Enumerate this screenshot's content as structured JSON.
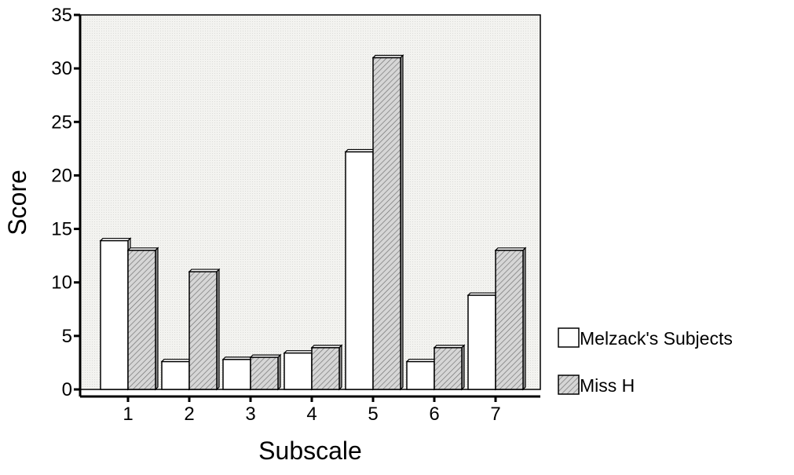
{
  "chart_data": {
    "type": "bar",
    "title": "",
    "xlabel": "Subscale",
    "ylabel": "Score",
    "categories": [
      "1",
      "2",
      "3",
      "4",
      "5",
      "6",
      "7"
    ],
    "ylim": [
      0,
      35
    ],
    "yticks": [
      "0",
      "5",
      "10",
      "15",
      "20",
      "25",
      "30",
      "35"
    ],
    "grid": false,
    "legend_position": "right",
    "series": [
      {
        "name": "Melzack's Subjects",
        "values": [
          13.9,
          2.6,
          2.8,
          3.4,
          22.2,
          2.6,
          8.8
        ],
        "fill": "#ffffff",
        "pattern": "none"
      },
      {
        "name": "Miss H",
        "values": [
          13.0,
          11.0,
          3.0,
          3.9,
          31.0,
          3.9,
          13.0
        ],
        "fill": "#cfcfcf",
        "pattern": "hatched"
      }
    ]
  }
}
